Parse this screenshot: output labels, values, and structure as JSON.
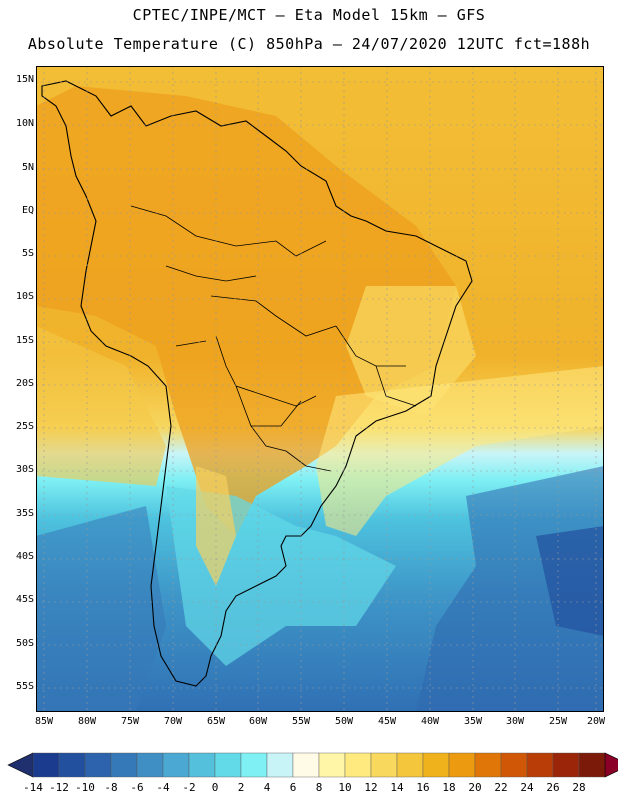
{
  "header": {
    "line1": "CPTEC/INPE/MCT –  Eta Model 15km – GFS",
    "line2": "Absolute Temperature (C) 850hPa – 24/07/2020 12UTC fct=188h"
  },
  "lat_labels": [
    "15N",
    "10N",
    "5N",
    "EQ",
    "5S",
    "10S",
    "15S",
    "20S",
    "25S",
    "30S",
    "35S",
    "40S",
    "45S",
    "50S",
    "55S"
  ],
  "lon_labels": [
    "85W",
    "80W",
    "75W",
    "70W",
    "65W",
    "60W",
    "55W",
    "50W",
    "45W",
    "40W",
    "35W",
    "30W",
    "25W",
    "20W"
  ],
  "colorbar": {
    "labels": [
      "-14",
      "-12",
      "-10",
      "-8",
      "-6",
      "-4",
      "-2",
      "0",
      "2",
      "4",
      "6",
      "8",
      "10",
      "12",
      "14",
      "16",
      "18",
      "20",
      "22",
      "24",
      "26",
      "28"
    ],
    "colors": [
      "#1b3b8f",
      "#22509e",
      "#2c63ac",
      "#3679b8",
      "#3f8fc4",
      "#4aa8d2",
      "#55c0dc",
      "#62dae8",
      "#7ff0f3",
      "#c8f4f8",
      "#fffbe6",
      "#fff6a8",
      "#ffea80",
      "#f9d95d",
      "#f4c63c",
      "#efb21c",
      "#ec9a0f",
      "#e17608",
      "#d05706",
      "#b83d06",
      "#9a2508",
      "#7c1a0a"
    ],
    "low_arrow": "#20306e",
    "high_arrow": "#8a0027"
  },
  "map": {
    "ocean_south_color": "#3fa0cf",
    "ocean_deep_color": "#2c66ad",
    "warm_color": "#f4b22a",
    "land_warm_color": "#efa21e",
    "border_color": "#000000",
    "grid_color": "#999999"
  }
}
